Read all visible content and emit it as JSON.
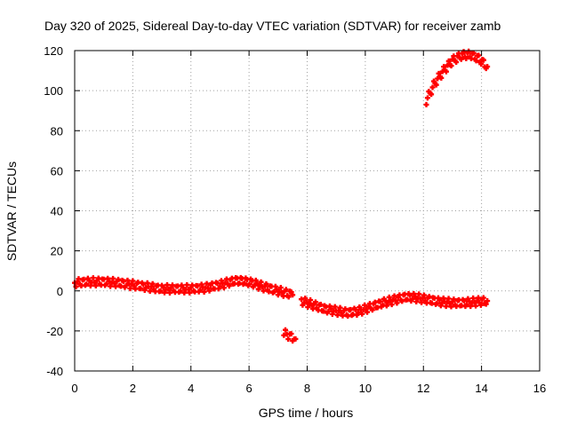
{
  "chart_data": {
    "type": "scatter",
    "title": "Day 320 of 2025, Sidereal Day-to-day VTEC variation (SDTVAR) for receiver zamb",
    "xlabel": "GPS time / hours",
    "ylabel": "SDTVAR / TECUs",
    "xlim": [
      0,
      16
    ],
    "ylim": [
      -40,
      120
    ],
    "xticks": [
      0,
      2,
      4,
      6,
      8,
      10,
      12,
      14,
      16
    ],
    "yticks": [
      -40,
      -20,
      0,
      20,
      40,
      60,
      80,
      100,
      120
    ],
    "xtick_labels": [
      "0",
      "2",
      "4",
      "6",
      "8",
      "10",
      "12",
      "14",
      "16"
    ],
    "ytick_labels": [
      "-40",
      "-20",
      "0",
      "20",
      "40",
      "60",
      "80",
      "100",
      "120"
    ],
    "grid": true,
    "color": "#ff0000",
    "series": [
      {
        "name": "main",
        "x": [
          0.0,
          0.5,
          1.0,
          1.5,
          2.0,
          2.5,
          3.0,
          3.5,
          4.0,
          4.5,
          5.0,
          5.5,
          5.8,
          6.1,
          6.5,
          7.0,
          7.5
        ],
        "y": [
          4,
          4.5,
          4.5,
          4,
          3,
          2,
          1,
          1,
          1,
          1.5,
          3,
          5,
          5,
          4,
          2,
          0,
          -2
        ]
      },
      {
        "name": "isolated",
        "x": [
          7.2,
          7.4,
          7.6
        ],
        "y": [
          -21,
          -22.5,
          -24
        ]
      },
      {
        "name": "middle",
        "x": [
          7.8,
          8.2,
          8.6,
          9.0,
          9.4,
          9.8,
          10.2,
          10.6,
          11.0,
          11.4,
          11.8,
          12.2,
          12.6,
          13.0,
          13.4,
          13.8,
          14.2
        ],
        "y": [
          -5,
          -7,
          -9,
          -10,
          -11,
          -10,
          -8,
          -6,
          -4.5,
          -3,
          -3.5,
          -4.5,
          -5.5,
          -6,
          -6,
          -5.5,
          -5
        ]
      },
      {
        "name": "arc",
        "x": [
          12.1,
          12.4,
          12.7,
          13.0,
          13.3,
          13.6,
          13.9,
          14.2
        ],
        "y": [
          95,
          104,
          110,
          115,
          117.5,
          118,
          116,
          112
        ]
      }
    ]
  }
}
